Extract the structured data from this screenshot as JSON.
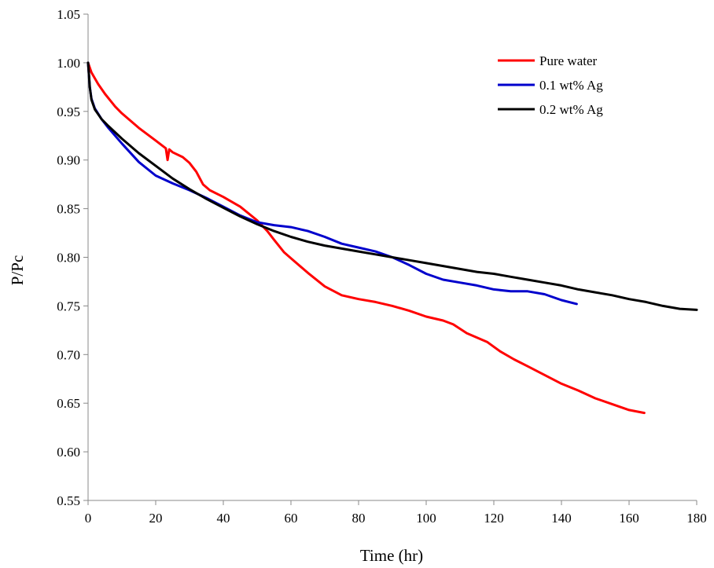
{
  "chart_data": {
    "type": "line",
    "title": "",
    "xlabel": "Time (hr)",
    "ylabel": "P/Pc",
    "xlim": [
      0,
      180
    ],
    "ylim": [
      0.55,
      1.05
    ],
    "x_ticks": [
      "0",
      "20",
      "40",
      "60",
      "80",
      "100",
      "120",
      "140",
      "160",
      "180"
    ],
    "y_ticks": [
      "0.55",
      "0.60",
      "0.65",
      "0.70",
      "0.75",
      "0.80",
      "0.85",
      "0.90",
      "0.95",
      "1.00",
      "1.05"
    ],
    "grid": false,
    "legend_position": "top-right",
    "series": [
      {
        "name": "Pure water",
        "color": "#ff0000",
        "x": [
          0,
          1,
          3,
          5,
          8,
          10,
          15,
          20,
          23,
          23.5,
          24,
          25,
          28,
          30,
          32,
          34,
          36,
          40,
          45,
          50,
          53,
          55,
          58,
          60,
          65,
          70,
          75,
          80,
          85,
          90,
          95,
          100,
          105,
          108,
          112,
          118,
          122,
          126,
          130,
          135,
          140,
          145,
          150,
          155,
          160,
          164.5
        ],
        "y": [
          1.0,
          0.99,
          0.978,
          0.968,
          0.955,
          0.948,
          0.933,
          0.92,
          0.912,
          0.9,
          0.911,
          0.908,
          0.903,
          0.897,
          0.888,
          0.875,
          0.869,
          0.862,
          0.852,
          0.838,
          0.827,
          0.818,
          0.805,
          0.799,
          0.784,
          0.77,
          0.761,
          0.757,
          0.754,
          0.75,
          0.745,
          0.739,
          0.735,
          0.731,
          0.722,
          0.713,
          0.703,
          0.695,
          0.688,
          0.679,
          0.67,
          0.663,
          0.655,
          0.649,
          0.643,
          0.64
        ]
      },
      {
        "name": "0.1 wt% Ag",
        "color": "#0000cc",
        "x": [
          0,
          0.5,
          1,
          2,
          4,
          6,
          10,
          15,
          20,
          25,
          30,
          35,
          40,
          45,
          50,
          55,
          60,
          65,
          70,
          75,
          80,
          85,
          90,
          95,
          100,
          105,
          110,
          115,
          120,
          125,
          130,
          135,
          140,
          144.5
        ],
        "y": [
          1.0,
          0.975,
          0.963,
          0.953,
          0.942,
          0.933,
          0.917,
          0.898,
          0.884,
          0.876,
          0.869,
          0.861,
          0.852,
          0.843,
          0.836,
          0.833,
          0.831,
          0.827,
          0.821,
          0.814,
          0.81,
          0.806,
          0.8,
          0.792,
          0.783,
          0.777,
          0.774,
          0.771,
          0.767,
          0.765,
          0.765,
          0.762,
          0.756,
          0.752
        ]
      },
      {
        "name": "0.2 wt% Ag",
        "color": "#000000",
        "x": [
          0,
          0.5,
          1,
          2,
          4,
          6,
          10,
          15,
          20,
          25,
          30,
          35,
          40,
          45,
          50,
          55,
          60,
          65,
          70,
          75,
          80,
          85,
          90,
          95,
          100,
          105,
          110,
          115,
          120,
          125,
          130,
          135,
          140,
          145,
          150,
          155,
          160,
          165,
          170,
          175,
          180
        ],
        "y": [
          1.0,
          0.975,
          0.962,
          0.952,
          0.942,
          0.935,
          0.922,
          0.907,
          0.894,
          0.881,
          0.87,
          0.86,
          0.851,
          0.842,
          0.834,
          0.827,
          0.821,
          0.816,
          0.812,
          0.809,
          0.806,
          0.803,
          0.8,
          0.797,
          0.794,
          0.791,
          0.788,
          0.785,
          0.783,
          0.78,
          0.777,
          0.774,
          0.771,
          0.767,
          0.764,
          0.761,
          0.757,
          0.754,
          0.75,
          0.747,
          0.746
        ]
      }
    ]
  }
}
